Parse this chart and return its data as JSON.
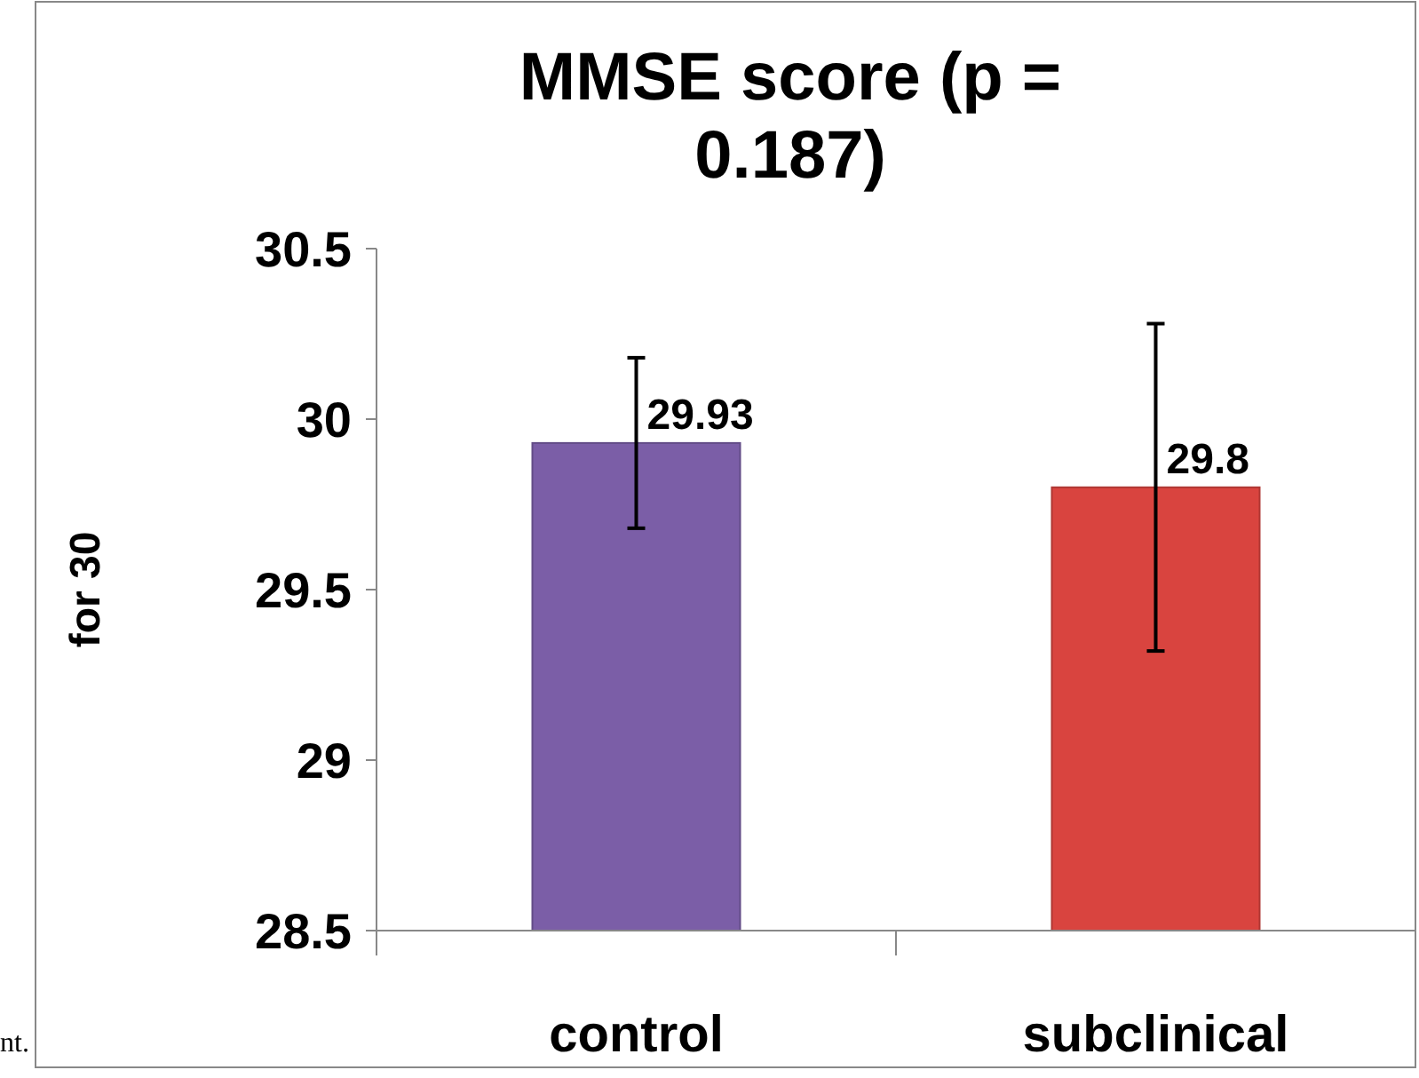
{
  "chart_data": {
    "type": "bar",
    "title": "MMSE score (p = 0.187)",
    "ylabel": "for 30",
    "categories": [
      "control",
      "subclinical"
    ],
    "values": [
      29.93,
      29.8
    ],
    "colors": [
      "#7b5ea7",
      "#d9443f"
    ],
    "errors": [
      0.25,
      0.48
    ],
    "data_labels": true,
    "ylim": [
      28.5,
      30.5
    ],
    "yticks": [
      28.5,
      29,
      29.5,
      30,
      30.5
    ],
    "grid": false,
    "annotations": [
      "nt."
    ]
  }
}
